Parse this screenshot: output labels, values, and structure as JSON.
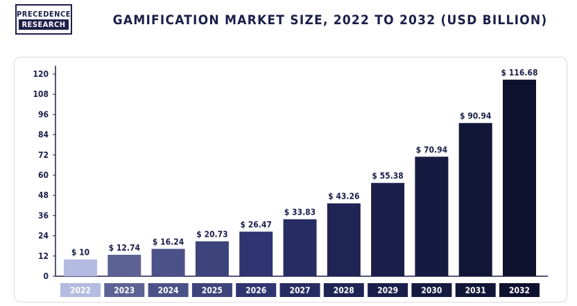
{
  "brand": {
    "line1": "PRECEDENCE",
    "line2": "RESEARCH"
  },
  "chart_data": {
    "type": "bar",
    "title": "GAMIFICATION MARKET SIZE, 2022 TO 2032 (USD BILLION)",
    "categories": [
      "2022",
      "2023",
      "2024",
      "2025",
      "2026",
      "2027",
      "2028",
      "2029",
      "2030",
      "2031",
      "2032"
    ],
    "values": [
      10,
      12.74,
      16.24,
      20.73,
      26.47,
      33.83,
      43.26,
      55.38,
      70.94,
      90.94,
      116.68
    ],
    "data_labels": [
      "$ 10",
      "$ 12.74",
      "$ 16.24",
      "$ 20.73",
      "$ 26.47",
      "$ 33.83",
      "$ 43.26",
      "$ 55.38",
      "$ 70.94",
      "$ 90.94",
      "$ 116.68"
    ],
    "yticks": [
      0,
      12,
      24,
      36,
      48,
      60,
      72,
      84,
      96,
      108,
      120
    ],
    "ylim": [
      0,
      120
    ],
    "xlabel": "",
    "ylabel": "",
    "grid": false,
    "legend": "none",
    "colors": [
      "#b3bbe0",
      "#5c6394",
      "#4b5288",
      "#3d447b",
      "#2e3570",
      "#262d63",
      "#1e2454",
      "#1a1f4a",
      "#161a40",
      "#121637",
      "#0e112d"
    ]
  }
}
